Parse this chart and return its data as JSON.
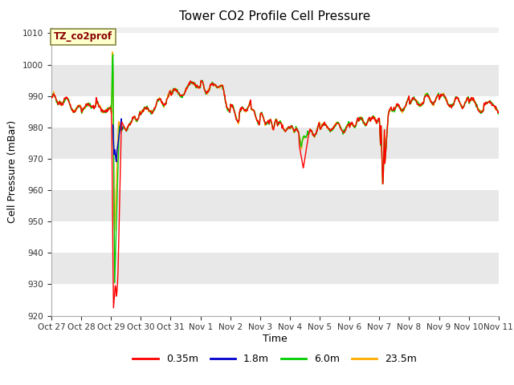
{
  "title": "Tower CO2 Profile Cell Pressure",
  "ylabel": "Cell Pressure (mBar)",
  "xlabel": "Time",
  "ylim": [
    920,
    1012
  ],
  "yticks": [
    920,
    930,
    940,
    950,
    960,
    970,
    980,
    990,
    1000,
    1010
  ],
  "legend_labels": [
    "0.35m",
    "1.8m",
    "6.0m",
    "23.5m"
  ],
  "legend_colors": [
    "#ff0000",
    "#0000cc",
    "#00cc00",
    "#ffaa00"
  ],
  "annotation_text": "TZ_co2prof",
  "annotation_color": "#880000",
  "annotation_bg": "#ffffcc",
  "line_width": 1.0,
  "xtick_labels": [
    "Oct 27",
    "Oct 28",
    "Oct 29",
    "Oct 30",
    "Oct 31",
    "Nov 1",
    "Nov 2",
    "Nov 3",
    "Nov 4",
    "Nov 5",
    "Nov 6",
    "Nov 7",
    "Nov 8",
    "Nov 9",
    "Nov 10",
    "Nov 11"
  ],
  "num_points": 800
}
